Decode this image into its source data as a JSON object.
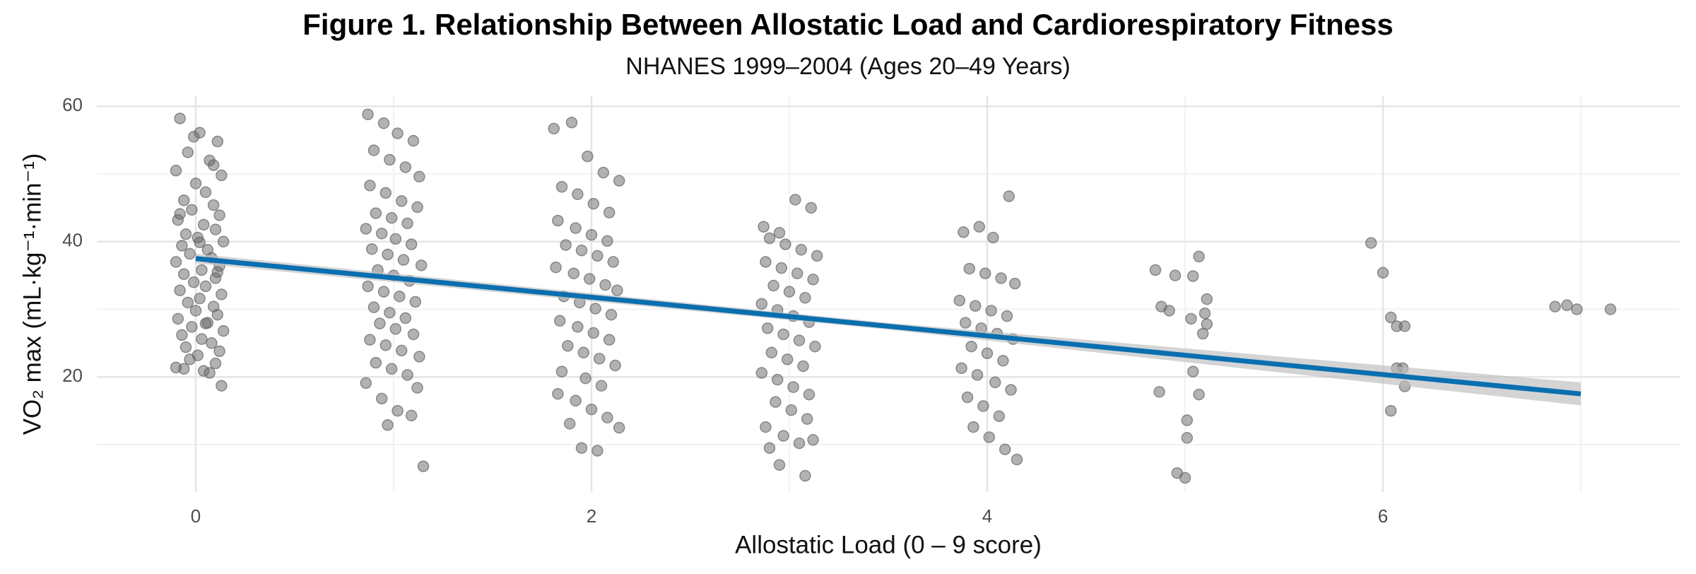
{
  "chart_data": {
    "type": "scatter",
    "title": "Figure 1. Relationship Between Allostatic Load and Cardiorespiratory Fitness",
    "subtitle": "NHANES 1999–2004 (Ages 20–49 Years)",
    "x_label": "Allostatic Load (0 – 9 score)",
    "y_label": "VO₂ max (mL·kg⁻¹·min⁻¹)",
    "xlim": [
      -0.5,
      7.5
    ],
    "ylim": [
      3,
      61.5
    ],
    "xticks": [
      0,
      2,
      4,
      6
    ],
    "yticks": [
      20,
      40,
      60
    ],
    "x_minor_grid": [
      1,
      3,
      5,
      7
    ],
    "y_minor_grid": [
      10,
      30,
      50
    ],
    "grid": true,
    "series": [
      {
        "color": "#666666",
        "x": [
          -0.08,
          0.02,
          0.11,
          -0.04,
          0.07,
          -0.1,
          0.13,
          0.0,
          0.05,
          -0.06,
          0.09,
          -0.02,
          0.12,
          -0.09,
          0.04,
          0.1,
          -0.05,
          0.01,
          0.14,
          -0.07,
          0.06,
          -0.03,
          0.08,
          -0.1,
          0.12,
          0.03,
          -0.06,
          0.1,
          -0.01,
          0.05,
          -0.08,
          0.13,
          0.02,
          -0.04,
          0.09,
          0.0,
          0.11,
          -0.09,
          0.06,
          -0.02,
          0.14,
          -0.07,
          0.03,
          0.08,
          -0.05,
          0.12,
          0.01,
          -0.03,
          0.1,
          -0.1,
          0.04,
          0.07,
          -0.06,
          0.13,
          -0.01,
          0.09,
          -0.08,
          0.02,
          0.11,
          0.05,
          0.87,
          0.95,
          1.02,
          1.1,
          0.9,
          0.98,
          1.06,
          1.13,
          0.88,
          0.96,
          1.04,
          1.12,
          0.91,
          0.99,
          1.07,
          0.86,
          0.94,
          1.01,
          1.09,
          0.89,
          0.97,
          1.05,
          1.14,
          0.92,
          1.0,
          1.08,
          0.87,
          0.95,
          1.03,
          1.11,
          0.9,
          0.98,
          1.06,
          0.93,
          1.01,
          1.1,
          0.88,
          0.96,
          1.04,
          1.13,
          0.91,
          0.99,
          1.07,
          0.86,
          1.12,
          0.94,
          1.02,
          1.09,
          0.97,
          1.15,
          1.81,
          1.9,
          1.98,
          2.06,
          2.14,
          1.85,
          1.93,
          2.01,
          2.09,
          1.83,
          1.92,
          2.0,
          2.08,
          1.87,
          1.95,
          2.03,
          2.11,
          1.82,
          1.91,
          1.99,
          2.07,
          2.13,
          1.86,
          1.94,
          2.02,
          2.1,
          1.84,
          1.93,
          2.01,
          2.09,
          1.88,
          1.96,
          2.04,
          2.12,
          1.85,
          1.97,
          2.05,
          1.83,
          1.92,
          2.0,
          2.08,
          1.89,
          2.14,
          1.95,
          2.03,
          2.87,
          2.95,
          3.03,
          3.11,
          2.9,
          2.98,
          3.06,
          3.14,
          2.88,
          2.96,
          3.04,
          3.12,
          2.92,
          3.0,
          3.08,
          2.86,
          2.94,
          3.02,
          3.1,
          2.89,
          2.97,
          3.05,
          3.13,
          2.91,
          2.99,
          3.07,
          2.86,
          2.94,
          3.02,
          3.1,
          2.93,
          3.01,
          3.09,
          2.88,
          2.97,
          3.05,
          2.9,
          3.12,
          2.95,
          3.08,
          3.88,
          3.96,
          4.03,
          4.11,
          3.91,
          3.99,
          4.07,
          4.14,
          3.86,
          3.94,
          4.02,
          4.1,
          3.89,
          3.97,
          4.05,
          4.13,
          3.92,
          4.0,
          4.08,
          3.87,
          3.95,
          4.04,
          4.12,
          3.9,
          3.98,
          4.06,
          3.93,
          4.01,
          4.09,
          4.15,
          4.85,
          4.95,
          5.04,
          5.07,
          5.11,
          4.88,
          4.92,
          5.1,
          5.03,
          5.11,
          5.09,
          5.04,
          4.87,
          5.07,
          5.01,
          5.01,
          4.96,
          5.0,
          5.94,
          6.0,
          6.04,
          6.07,
          6.11,
          6.07,
          6.1,
          6.11,
          6.04,
          6.87,
          6.93,
          6.98,
          7.15
        ],
        "values": [
          58.2,
          56.1,
          54.8,
          53.2,
          52.0,
          50.5,
          49.8,
          48.6,
          47.3,
          46.1,
          45.4,
          44.7,
          43.9,
          43.2,
          42.5,
          41.8,
          41.1,
          40.6,
          40.0,
          39.4,
          38.8,
          38.2,
          37.6,
          37.0,
          36.4,
          35.8,
          35.2,
          34.6,
          34.0,
          33.4,
          32.8,
          32.2,
          31.6,
          31.0,
          30.4,
          29.8,
          29.2,
          28.6,
          28.0,
          27.4,
          26.8,
          26.2,
          25.6,
          25.0,
          24.4,
          23.8,
          23.2,
          22.6,
          22.0,
          21.4,
          20.9,
          20.6,
          21.2,
          18.7,
          55.5,
          51.3,
          44.1,
          39.9,
          35.5,
          27.9,
          58.8,
          57.5,
          56.0,
          54.9,
          53.5,
          52.1,
          51.0,
          49.6,
          48.3,
          47.2,
          46.0,
          45.1,
          44.2,
          43.5,
          42.7,
          41.9,
          41.2,
          40.4,
          39.6,
          38.9,
          38.1,
          37.3,
          36.5,
          35.8,
          35.0,
          34.2,
          33.4,
          32.6,
          31.9,
          31.1,
          30.3,
          29.5,
          28.7,
          27.9,
          27.1,
          26.3,
          25.5,
          24.7,
          23.9,
          23.0,
          22.1,
          21.2,
          20.3,
          19.1,
          18.4,
          16.8,
          15.0,
          14.3,
          12.9,
          6.8,
          56.7,
          57.6,
          52.6,
          50.2,
          49.0,
          48.1,
          47.0,
          45.6,
          44.3,
          43.1,
          42.0,
          41.0,
          40.1,
          39.5,
          38.7,
          37.9,
          37.0,
          36.2,
          35.3,
          34.5,
          33.6,
          32.8,
          31.9,
          31.0,
          30.1,
          29.2,
          28.3,
          27.4,
          26.5,
          25.5,
          24.6,
          23.6,
          22.7,
          21.7,
          20.8,
          19.8,
          18.7,
          17.5,
          16.5,
          15.2,
          14.0,
          13.1,
          12.5,
          9.5,
          9.1,
          42.2,
          41.3,
          46.2,
          45.0,
          40.5,
          39.6,
          38.8,
          37.9,
          37.0,
          36.1,
          35.3,
          34.4,
          33.5,
          32.6,
          31.7,
          30.8,
          29.9,
          29.0,
          28.1,
          27.2,
          26.3,
          25.4,
          24.5,
          23.6,
          22.6,
          21.6,
          20.6,
          19.6,
          18.5,
          17.4,
          16.3,
          15.1,
          13.8,
          12.6,
          11.3,
          10.2,
          9.5,
          10.7,
          7.0,
          5.4,
          41.4,
          42.2,
          40.6,
          46.7,
          36.0,
          35.3,
          34.6,
          33.8,
          31.3,
          30.5,
          29.8,
          29.0,
          28.0,
          27.2,
          26.4,
          25.6,
          24.5,
          23.5,
          22.4,
          21.3,
          20.3,
          19.2,
          18.1,
          17.0,
          15.7,
          14.2,
          12.6,
          11.1,
          9.3,
          7.8,
          35.8,
          35.0,
          34.9,
          37.8,
          31.5,
          30.4,
          29.8,
          29.4,
          28.6,
          27.8,
          26.4,
          20.8,
          17.8,
          17.4,
          13.6,
          11.0,
          5.8,
          5.1,
          39.8,
          35.4,
          28.8,
          27.5,
          27.5,
          21.3,
          21.3,
          18.6,
          15.0,
          30.4,
          30.6,
          30.0,
          30.0
        ]
      }
    ],
    "fit": {
      "color": "#0a6fb0",
      "x": [
        0,
        7
      ],
      "y": [
        37.5,
        17.5
      ]
    },
    "ci": {
      "color": "#bdbdbd",
      "x": [
        0,
        3.5,
        7
      ],
      "lower": [
        36.8,
        27.0,
        15.8
      ],
      "upper": [
        38.2,
        28.0,
        19.2
      ]
    }
  }
}
